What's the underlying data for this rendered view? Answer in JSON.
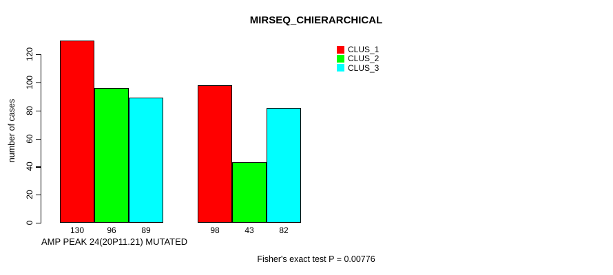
{
  "figure": {
    "title": "MIRSEQ_CHIERARCHICAL",
    "footnote": "Fisher's exact test P = 0.00776"
  },
  "chart_data": {
    "type": "bar",
    "title": "MIRSEQ_CHIERARCHICAL",
    "xlabel": "AMP PEAK 24(20P11.21) MUTATED",
    "ylabel": "number of cases",
    "ylim": [
      0,
      130
    ],
    "yticks": [
      0,
      20,
      40,
      60,
      80,
      100,
      120
    ],
    "grid": false,
    "legend_position": "top-right",
    "series": [
      {
        "name": "CLUS_1",
        "color": "#ff0000",
        "values": [
          130,
          98
        ]
      },
      {
        "name": "CLUS_2",
        "color": "#00ff00",
        "values": [
          96,
          43
        ]
      },
      {
        "name": "CLUS_3",
        "color": "#00ffff",
        "values": [
          89,
          82
        ]
      }
    ],
    "bar_value_labels": [
      [
        130,
        96,
        89
      ],
      [
        98,
        43,
        82
      ]
    ],
    "annotation": "Fisher's exact test P = 0.00776"
  },
  "legend": {
    "items": [
      {
        "label": "CLUS_1",
        "color": "#ff0000"
      },
      {
        "label": "CLUS_2",
        "color": "#00ff00"
      },
      {
        "label": "CLUS_3",
        "color": "#00ffff"
      }
    ]
  }
}
